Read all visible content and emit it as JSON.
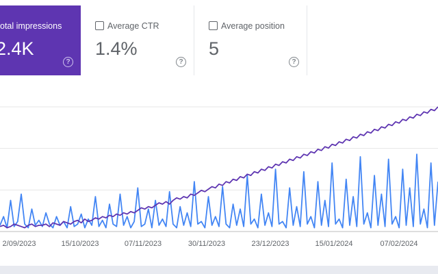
{
  "metrics": [
    {
      "label": "otal impressions",
      "value": "2.4K",
      "checked": true,
      "help_icon": "help-circle-icon"
    },
    {
      "label": "Average CTR",
      "value": "1.4%",
      "checked": false,
      "help_icon": "help-circle-icon"
    },
    {
      "label": "Average position",
      "value": "5",
      "checked": false,
      "help_icon": "help-circle-icon"
    }
  ],
  "colors": {
    "impressions": "#5e35b1",
    "clicks": "#4285f4",
    "active_card": "#5e35b1"
  },
  "chart_data": {
    "type": "line",
    "x_tick_labels": [
      "2/09/2023",
      "15/10/2023",
      "07/11/2023",
      "30/11/2023",
      "23/12/2023",
      "15/01/2024",
      "07/02/2024"
    ],
    "grid": true,
    "series": [
      {
        "values": [
          4,
          5,
          3,
          4,
          6,
          5,
          4,
          3,
          5,
          6,
          4,
          5,
          5,
          6,
          4,
          7,
          6,
          5,
          8,
          7,
          6,
          8,
          9,
          7,
          10,
          8,
          9,
          11,
          10,
          12,
          11,
          13,
          12,
          14,
          13,
          15,
          14,
          16,
          15,
          17,
          19,
          18,
          20,
          19,
          21,
          23,
          22,
          24,
          22,
          25,
          27,
          26,
          28,
          27,
          30,
          29,
          31,
          33,
          32,
          34,
          36,
          35,
          38,
          37,
          40,
          39,
          42,
          41,
          44,
          43,
          46,
          45,
          48,
          47,
          50,
          49,
          52,
          51,
          54,
          53,
          56,
          55,
          58,
          57,
          60,
          59,
          62,
          61,
          64,
          63,
          66,
          65,
          68,
          67,
          70,
          69,
          72,
          71,
          74,
          73,
          76,
          75,
          78,
          77,
          80,
          79,
          82,
          81,
          84,
          83,
          86,
          85,
          88,
          87,
          90,
          89,
          92,
          91,
          94,
          93,
          96,
          95,
          98,
          97,
          100
        ]
      },
      {
        "values": [
          5,
          12,
          3,
          25,
          4,
          8,
          30,
          6,
          3,
          18,
          5,
          9,
          4,
          15,
          6,
          3,
          12,
          5,
          8,
          3,
          20,
          4,
          6,
          14,
          3,
          10,
          5,
          28,
          4,
          9,
          3,
          22,
          6,
          4,
          30,
          5,
          12,
          3,
          8,
          35,
          4,
          6,
          18,
          3,
          25,
          5,
          10,
          4,
          32,
          6,
          3,
          20,
          5,
          15,
          4,
          40,
          6,
          8,
          3,
          28,
          5,
          12,
          4,
          36,
          6,
          3,
          22,
          5,
          18,
          4,
          45,
          6,
          10,
          3,
          30,
          5,
          15,
          4,
          50,
          6,
          8,
          3,
          35,
          5,
          20,
          4,
          48,
          6,
          12,
          3,
          40,
          5,
          25,
          4,
          55,
          6,
          10,
          3,
          42,
          5,
          28,
          4,
          60,
          6,
          15,
          3,
          45,
          5,
          30,
          4,
          58,
          6,
          12,
          3,
          50,
          5,
          35,
          4,
          62,
          6,
          18,
          3,
          55,
          5,
          40
        ]
      }
    ]
  }
}
